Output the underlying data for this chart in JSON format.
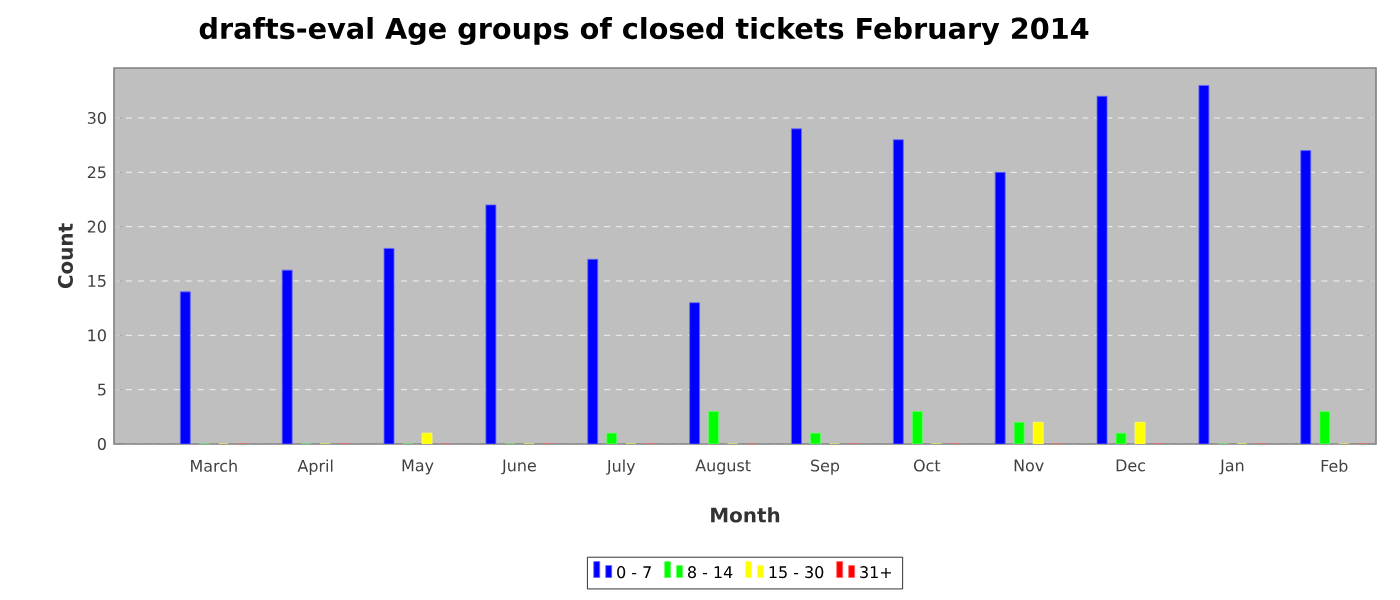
{
  "chart_data": {
    "type": "bar",
    "title": "drafts-eval Age groups of closed tickets February 2014",
    "xlabel": "Month",
    "ylabel": "Count",
    "categories": [
      "March",
      "April",
      "May",
      "June",
      "July",
      "August",
      "Sep",
      "Oct",
      "Nov",
      "Dec",
      "Jan",
      "Feb"
    ],
    "series": [
      {
        "name": "0 - 7",
        "color": "#0000ff",
        "values": [
          14,
          16,
          18,
          22,
          17,
          13,
          29,
          28,
          25,
          32,
          33,
          27
        ]
      },
      {
        "name": "8 - 14",
        "color": "#00ff00",
        "values": [
          0,
          0,
          0,
          0,
          1,
          3,
          1,
          3,
          2,
          1,
          0,
          3
        ]
      },
      {
        "name": "15 - 30",
        "color": "#ffff00",
        "values": [
          0,
          0,
          1,
          0,
          0,
          0,
          0,
          0,
          2,
          2,
          0,
          0
        ]
      },
      {
        "name": "31+",
        "color": "#ff0000",
        "values": [
          0,
          0,
          0,
          0,
          0,
          0,
          0,
          0,
          0,
          0,
          0,
          0
        ]
      }
    ],
    "ylim": [
      0,
      34.6
    ],
    "yticks": [
      0,
      5,
      10,
      15,
      20,
      25,
      30
    ],
    "grid": "y",
    "legend": "bottom"
  }
}
